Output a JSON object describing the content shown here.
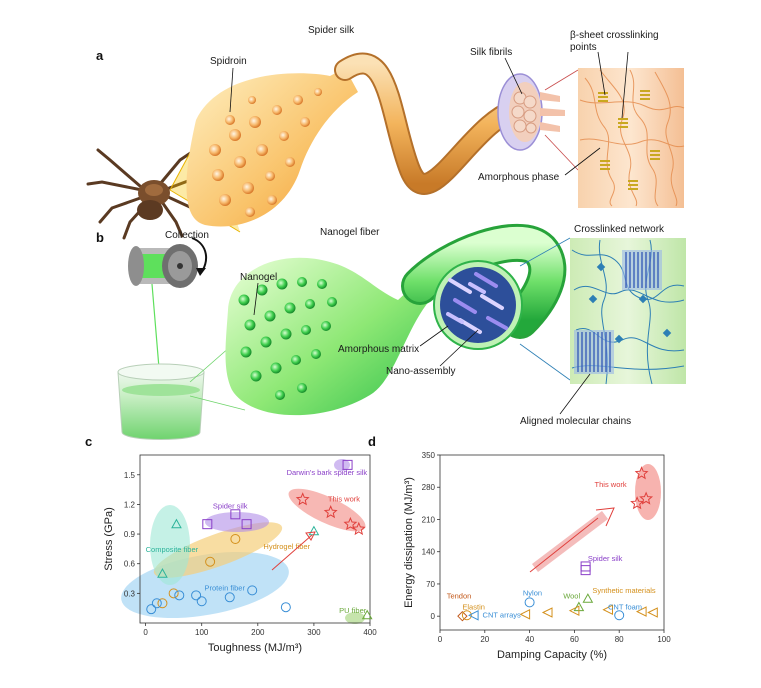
{
  "panels": {
    "a": "a",
    "b": "b",
    "c": "c",
    "d": "d"
  },
  "panel_a": {
    "spider_silk": "Spider silk",
    "spidroin": "Spidroin",
    "silk_fibrils": "Silk fibrils",
    "beta_sheet_line1": "β-sheet crosslinking",
    "beta_sheet_line2": "points",
    "amorphous_phase": "Amorphous phase"
  },
  "panel_b": {
    "collection": "Collection",
    "nanogel_fiber": "Nanogel fiber",
    "crosslinked_network": "Crosslinked network",
    "nanogel": "Nanogel",
    "amorphous_matrix": "Amorphous matrix",
    "nano_assembly": "Nano-assembly",
    "aligned_chains": "Aligned molecular chains"
  },
  "colors": {
    "spider": "#f2a23a",
    "nanogel": "#3fcf4e",
    "tissue": "#f6c7a0",
    "network": "#2d7fb5"
  },
  "chart_data": [
    {
      "type": "scatter",
      "xlabel": "Toughness (MJ/m³)",
      "ylabel": "Stress (GPa)",
      "xlim": [
        -10,
        400
      ],
      "ylim": [
        0,
        1.7
      ],
      "xticks": [
        "0",
        "100",
        "200",
        "300",
        "400"
      ],
      "yticks": [
        "0.3",
        "0.6",
        "0.9",
        "1.2",
        "1.5"
      ],
      "groups": [
        {
          "name": "Darwin's bark spider silk",
          "color": "#8a3fc8",
          "marker": "square",
          "points": [
            [
              360,
              1.6
            ]
          ]
        },
        {
          "name": "Spider silk",
          "color": "#8a3fc8",
          "marker": "square",
          "points": [
            [
              110,
              1.0
            ],
            [
              160,
              1.1
            ],
            [
              180,
              1.0
            ]
          ]
        },
        {
          "name": "This work",
          "color": "#e0403c",
          "marker": "star",
          "points": [
            [
              280,
              1.25
            ],
            [
              330,
              1.12
            ],
            [
              365,
              1.0
            ],
            [
              380,
              0.95
            ]
          ]
        },
        {
          "name": "Composite fiber",
          "color": "#2bb39a",
          "marker": "triangle",
          "points": [
            [
              55,
              1.0
            ],
            [
              30,
              0.5
            ],
            [
              300,
              0.93
            ]
          ]
        },
        {
          "name": "Hydrogel fiber",
          "color": "#d4901c",
          "marker": "circle",
          "points": [
            [
              50,
              0.3
            ],
            [
              115,
              0.62
            ],
            [
              160,
              0.85
            ],
            [
              30,
              0.2
            ]
          ]
        },
        {
          "name": "Protein fiber",
          "color": "#3a8fd6",
          "marker": "circle",
          "points": [
            [
              10,
              0.14
            ],
            [
              20,
              0.2
            ],
            [
              60,
              0.28
            ],
            [
              100,
              0.22
            ],
            [
              150,
              0.26
            ],
            [
              190,
              0.33
            ],
            [
              250,
              0.16
            ],
            [
              90,
              0.28
            ]
          ]
        },
        {
          "name": "PU fiber",
          "color": "#6aa83a",
          "marker": "triangle",
          "points": [
            [
              395,
              0.08
            ]
          ]
        }
      ]
    },
    {
      "type": "scatter",
      "xlabel": "Damping Capacity (%)",
      "ylabel": "Energy dissipation (MJ/m³)",
      "xlim": [
        0,
        100
      ],
      "ylim": [
        -30,
        350
      ],
      "xticks": [
        "0",
        "20",
        "40",
        "60",
        "80",
        "100"
      ],
      "yticks": [
        "0",
        "70",
        "140",
        "210",
        "280",
        "350"
      ],
      "groups": [
        {
          "name": "This work",
          "color": "#e0403c",
          "marker": "star",
          "points": [
            [
              90,
              310
            ],
            [
              88,
              245
            ],
            [
              92,
              255
            ]
          ]
        },
        {
          "name": "Spider silk",
          "color": "#8a3fc8",
          "marker": "square",
          "points": [
            [
              65,
              100
            ],
            [
              65,
              108
            ]
          ]
        },
        {
          "name": "Nylon",
          "color": "#3a8fd6",
          "marker": "circle",
          "points": [
            [
              40,
              30
            ]
          ]
        },
        {
          "name": "Wool",
          "color": "#6aa83a",
          "marker": "triangle",
          "points": [
            [
              62,
              20
            ],
            [
              66,
              38
            ]
          ]
        },
        {
          "name": "Synthetic materials",
          "color": "#d4901c",
          "marker": "triangle-left",
          "points": [
            [
              38,
              4
            ],
            [
              48,
              8
            ],
            [
              60,
              12
            ],
            [
              75,
              14
            ],
            [
              90,
              10
            ],
            [
              95,
              8
            ]
          ]
        },
        {
          "name": "CNT foam",
          "color": "#3a8fd6",
          "marker": "circle",
          "points": [
            [
              80,
              2
            ]
          ]
        },
        {
          "name": "Tendon",
          "color": "#c2581a",
          "marker": "diamond",
          "points": [
            [
              10,
              0
            ]
          ]
        },
        {
          "name": "Elastin",
          "color": "#d4901c",
          "marker": "circle",
          "points": [
            [
              12,
              2
            ]
          ]
        },
        {
          "name": "CNT arrays",
          "color": "#3a8fd6",
          "marker": "triangle-left",
          "points": [
            [
              15,
              2
            ]
          ]
        }
      ]
    }
  ]
}
